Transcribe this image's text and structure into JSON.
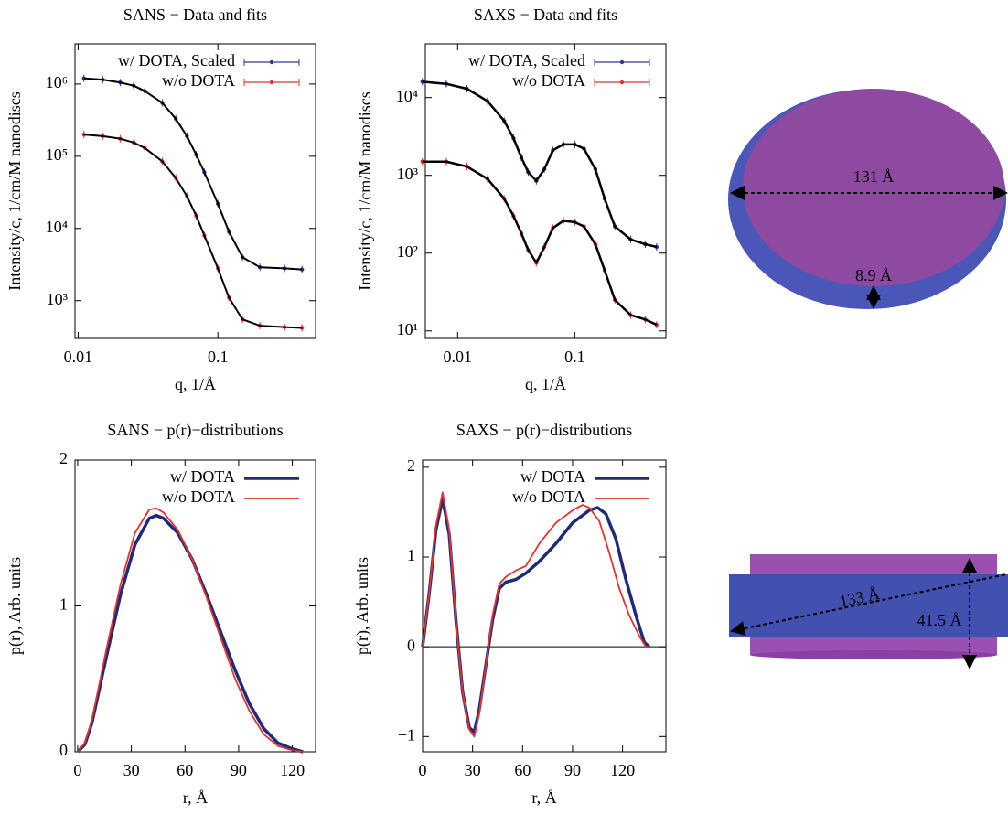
{
  "chart_data": [
    {
      "type": "scatter",
      "title": "SANS − Data and fits",
      "x_label": "q, 1/Å",
      "y_label": "Intensity/c, 1/cm/M nanodiscs",
      "xlog": true,
      "ylog": true,
      "xlim": [
        0.0095,
        0.5
      ],
      "ylim": [
        300,
        3600000
      ],
      "xticks": [
        0.01,
        0.1
      ],
      "yticks": [
        {
          "value": 1000,
          "label": "10³"
        },
        {
          "value": 10000,
          "label": "10⁴"
        },
        {
          "value": 100000,
          "label": "10⁵"
        },
        {
          "value": 1000000,
          "label": "10⁶"
        }
      ],
      "legend": "upper right",
      "series": [
        {
          "name": "w/ DOTA, Scaled",
          "color": "#2b3990",
          "mode": "markers",
          "x": [
            0.011,
            0.015,
            0.02,
            0.025,
            0.03,
            0.04,
            0.05,
            0.06,
            0.07,
            0.08,
            0.1,
            0.12,
            0.15,
            0.2,
            0.3,
            0.4
          ],
          "values": [
            1200000,
            1150000,
            1050000,
            950000,
            800000,
            550000,
            330000,
            190000,
            105000,
            60000,
            22000,
            9000,
            4000,
            2900,
            2800,
            2700
          ]
        },
        {
          "name": "w/o DOTA",
          "color": "#e8312a",
          "mode": "markers",
          "x": [
            0.011,
            0.015,
            0.02,
            0.025,
            0.03,
            0.04,
            0.05,
            0.06,
            0.07,
            0.08,
            0.1,
            0.12,
            0.15,
            0.2,
            0.3,
            0.4
          ],
          "values": [
            200000,
            190000,
            175000,
            155000,
            130000,
            85000,
            50000,
            28000,
            15000,
            8000,
            2800,
            1100,
            550,
            450,
            430,
            420
          ]
        },
        {
          "color": "#000000",
          "mode": "lines",
          "line_width": 2,
          "x": [
            0.011,
            0.015,
            0.02,
            0.025,
            0.03,
            0.04,
            0.05,
            0.06,
            0.07,
            0.08,
            0.1,
            0.12,
            0.15,
            0.2,
            0.3,
            0.4
          ],
          "values": [
            1200000,
            1150000,
            1050000,
            950000,
            800000,
            550000,
            330000,
            190000,
            105000,
            60000,
            22000,
            9000,
            4000,
            2900,
            2800,
            2700
          ]
        },
        {
          "color": "#000000",
          "mode": "lines",
          "line_width": 2,
          "x": [
            0.011,
            0.015,
            0.02,
            0.025,
            0.03,
            0.04,
            0.05,
            0.06,
            0.07,
            0.08,
            0.1,
            0.12,
            0.15,
            0.2,
            0.3,
            0.4
          ],
          "values": [
            200000,
            190000,
            175000,
            155000,
            130000,
            85000,
            50000,
            28000,
            15000,
            8000,
            2800,
            1100,
            550,
            450,
            430,
            420
          ]
        }
      ]
    },
    {
      "type": "scatter",
      "title": "SAXS − Data and fits",
      "x_label": "q, 1/Å",
      "y_label": "Intensity/c, 1/cm/M nanodiscs",
      "xlog": true,
      "ylog": true,
      "xlim": [
        0.0053,
        0.6
      ],
      "ylim": [
        8,
        49000
      ],
      "xticks": [
        0.01,
        0.1
      ],
      "yticks": [
        {
          "value": 10,
          "label": "10¹"
        },
        {
          "value": 100,
          "label": "10²"
        },
        {
          "value": 1000,
          "label": "10³"
        },
        {
          "value": 10000,
          "label": "10⁴"
        }
      ],
      "legend": "upper right",
      "series": [
        {
          "name": "w/ DOTA, Scaled",
          "color": "#2b3990",
          "mode": "markers",
          "x": [
            0.005,
            0.008,
            0.012,
            0.018,
            0.025,
            0.03,
            0.035,
            0.04,
            0.047,
            0.055,
            0.065,
            0.08,
            0.1,
            0.12,
            0.15,
            0.18,
            0.22,
            0.3,
            0.4,
            0.5
          ],
          "values": [
            16000,
            15000,
            13000,
            9000,
            5000,
            3000,
            1700,
            1100,
            850,
            1200,
            2100,
            2500,
            2500,
            2200,
            1200,
            500,
            220,
            150,
            130,
            120
          ]
        },
        {
          "name": "w/o DOTA",
          "color": "#e8312a",
          "mode": "markers",
          "x": [
            0.005,
            0.008,
            0.012,
            0.018,
            0.025,
            0.03,
            0.035,
            0.04,
            0.047,
            0.055,
            0.065,
            0.08,
            0.1,
            0.12,
            0.15,
            0.18,
            0.22,
            0.3,
            0.4,
            0.5
          ],
          "values": [
            1500,
            1500,
            1300,
            900,
            500,
            300,
            180,
            110,
            75,
            120,
            210,
            260,
            250,
            220,
            130,
            60,
            25,
            16,
            14,
            12
          ]
        },
        {
          "color": "#000000",
          "mode": "lines",
          "line_width": 2.5,
          "x": [
            0.005,
            0.008,
            0.012,
            0.018,
            0.025,
            0.03,
            0.035,
            0.04,
            0.047,
            0.055,
            0.065,
            0.08,
            0.1,
            0.12,
            0.15,
            0.18,
            0.22,
            0.3,
            0.4,
            0.5
          ],
          "values": [
            16000,
            15000,
            13000,
            9000,
            5000,
            3000,
            1700,
            1100,
            850,
            1200,
            2100,
            2500,
            2500,
            2200,
            1200,
            500,
            220,
            150,
            130,
            120
          ]
        },
        {
          "color": "#000000",
          "mode": "lines",
          "line_width": 2.5,
          "x": [
            0.005,
            0.008,
            0.012,
            0.018,
            0.025,
            0.03,
            0.035,
            0.04,
            0.047,
            0.055,
            0.065,
            0.08,
            0.1,
            0.12,
            0.15,
            0.18,
            0.22,
            0.3,
            0.4,
            0.5
          ],
          "values": [
            1500,
            1500,
            1300,
            900,
            500,
            300,
            180,
            110,
            75,
            120,
            210,
            260,
            250,
            220,
            130,
            60,
            25,
            16,
            14,
            12
          ]
        }
      ]
    },
    {
      "type": "line",
      "title": "SANS − p(r)−distributions",
      "x_label": "r, Å",
      "y_label": "p(r), Arb. units",
      "xlim": [
        -1.5,
        133
      ],
      "ylim": [
        0,
        2
      ],
      "xticks": [
        0,
        30,
        60,
        90,
        120
      ],
      "yticks": [
        0,
        1,
        2
      ],
      "legend": "upper right",
      "series": [
        {
          "name": "w/ DOTA",
          "color": "#1f2a7a",
          "mode": "lines",
          "line_width": 3.5,
          "x": [
            0,
            4,
            8,
            16,
            24,
            32,
            40,
            44,
            48,
            56,
            64,
            72,
            80,
            88,
            96,
            104,
            112,
            120,
            126
          ],
          "values": [
            0,
            0.05,
            0.2,
            0.65,
            1.08,
            1.42,
            1.6,
            1.62,
            1.6,
            1.5,
            1.32,
            1.08,
            0.82,
            0.56,
            0.33,
            0.16,
            0.06,
            0.02,
            0
          ]
        },
        {
          "name": "w/o DOTA",
          "color": "#e8312a",
          "mode": "lines",
          "line_width": 1.8,
          "x": [
            0,
            4,
            8,
            16,
            24,
            32,
            40,
            44,
            48,
            56,
            64,
            72,
            80,
            88,
            96,
            104,
            112,
            120,
            126
          ],
          "values": [
            0,
            0.06,
            0.22,
            0.7,
            1.15,
            1.5,
            1.66,
            1.67,
            1.64,
            1.52,
            1.32,
            1.06,
            0.78,
            0.5,
            0.28,
            0.12,
            0.04,
            0.01,
            0
          ]
        }
      ]
    },
    {
      "type": "line",
      "title": "SAXS − p(r)−distributions",
      "x_label": "r, Å",
      "y_label": "p(r), Arb. units",
      "xlim": [
        0,
        146
      ],
      "ylim": [
        -1.17,
        2.08
      ],
      "xticks": [
        0,
        30,
        60,
        90,
        120
      ],
      "yticks": [
        {
          "value": -1,
          "label": "−1"
        },
        0,
        1,
        2
      ],
      "zero_line": true,
      "legend": "upper right",
      "series": [
        {
          "name": "w/ DOTA",
          "color": "#1f2a7a",
          "mode": "lines",
          "line_width": 3.5,
          "x": [
            0,
            4,
            8,
            12,
            16,
            20,
            24,
            28,
            31,
            34,
            38,
            42,
            46,
            50,
            56,
            62,
            70,
            80,
            90,
            100,
            105,
            110,
            116,
            122,
            128,
            133,
            136
          ],
          "values": [
            0,
            0.6,
            1.3,
            1.65,
            1.25,
            0.3,
            -0.5,
            -0.9,
            -0.95,
            -0.7,
            -0.2,
            0.3,
            0.65,
            0.72,
            0.75,
            0.82,
            0.95,
            1.15,
            1.38,
            1.52,
            1.55,
            1.48,
            1.2,
            0.75,
            0.35,
            0.05,
            0
          ]
        },
        {
          "name": "w/o DOTA",
          "color": "#e8312a",
          "mode": "lines",
          "line_width": 1.8,
          "x": [
            0,
            4,
            8,
            12,
            16,
            20,
            24,
            28,
            31,
            34,
            38,
            42,
            46,
            50,
            56,
            62,
            70,
            80,
            90,
            96,
            100,
            106,
            112,
            118,
            124,
            130,
            134,
            136
          ],
          "values": [
            0,
            0.6,
            1.35,
            1.72,
            1.3,
            0.3,
            -0.5,
            -0.92,
            -1.0,
            -0.75,
            -0.2,
            0.35,
            0.7,
            0.78,
            0.85,
            0.9,
            1.15,
            1.38,
            1.52,
            1.58,
            1.55,
            1.4,
            1.05,
            0.65,
            0.35,
            0.12,
            0,
            0
          ]
        }
      ]
    }
  ],
  "diagrams": {
    "top_view": {
      "diameter": "131 Å",
      "rim": "8.9 Å"
    },
    "side_view": {
      "diameter": "133 Å",
      "height": "41.5 Å"
    }
  }
}
